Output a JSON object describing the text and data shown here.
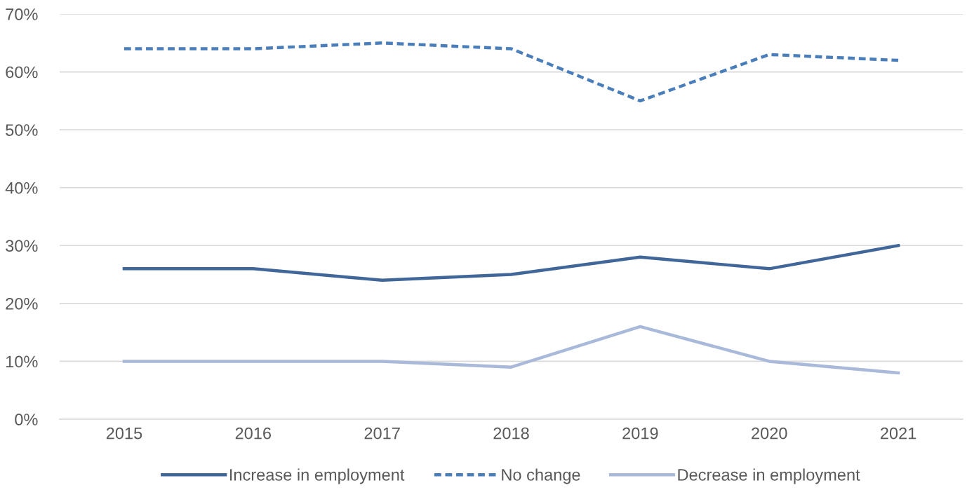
{
  "chart_data": {
    "type": "line",
    "categories": [
      "2015",
      "2016",
      "2017",
      "2018",
      "2019",
      "2020",
      "2021"
    ],
    "series": [
      {
        "name": "Increase in employment",
        "color": "#41679a",
        "line_style": "solid",
        "values": [
          26,
          26,
          24,
          25,
          28,
          26,
          30
        ]
      },
      {
        "name": "No change",
        "color": "#4a7ebb",
        "line_style": "dashed",
        "values": [
          64,
          64,
          65,
          64,
          55,
          63,
          62
        ]
      },
      {
        "name": "Decrease in employment",
        "color": "#a9b9d9",
        "line_style": "solid",
        "values": [
          10,
          10,
          10,
          9,
          16,
          10,
          8
        ]
      }
    ],
    "ylim": [
      0,
      70
    ],
    "yticks": [
      {
        "value": 0,
        "label": "0%"
      },
      {
        "value": 10,
        "label": "10%"
      },
      {
        "value": 20,
        "label": "20%"
      },
      {
        "value": 30,
        "label": "30%"
      },
      {
        "value": 40,
        "label": "40%"
      },
      {
        "value": 50,
        "label": "50%"
      },
      {
        "value": 60,
        "label": "60%"
      },
      {
        "value": 70,
        "label": "70%"
      }
    ],
    "grid": "y",
    "legend": "bottom",
    "marker": "none"
  }
}
